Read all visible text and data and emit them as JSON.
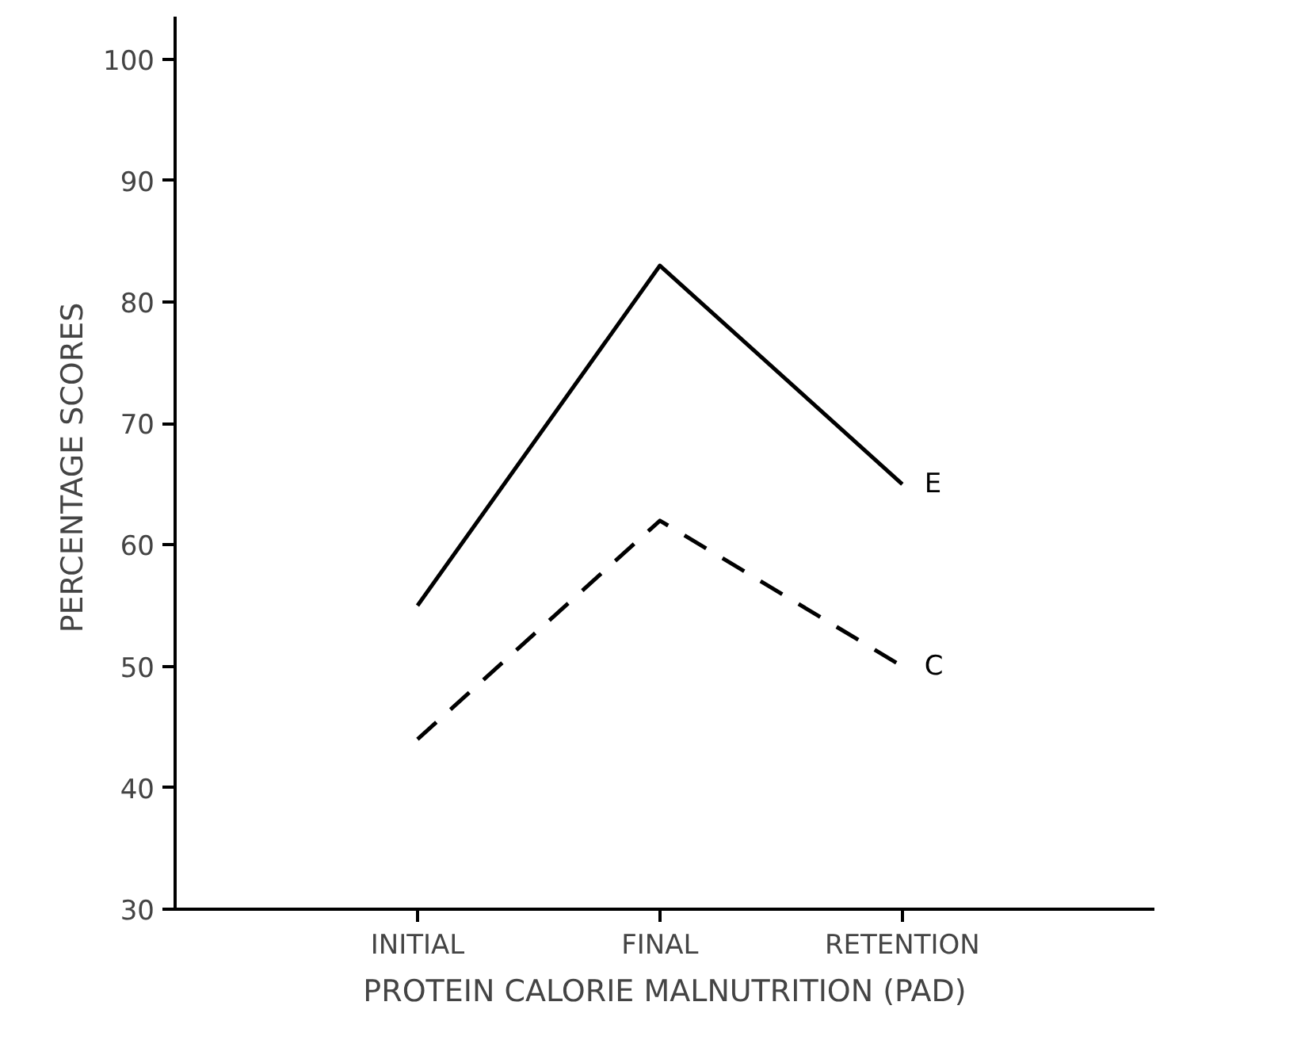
{
  "chart_data": {
    "type": "line",
    "xlabel": "PROTEIN CALORIE MALNUTRITION (PAD)",
    "ylabel": "PERCENTAGE  SCORES",
    "categories": [
      "INITIAL",
      "FINAL",
      "RETENTION"
    ],
    "series": [
      {
        "name": "E",
        "color": "#000000",
        "line_style": "solid",
        "values": [
          55,
          83,
          65
        ]
      },
      {
        "name": "C",
        "color": "#000000",
        "line_style": "dashed",
        "values": [
          44,
          62,
          50
        ]
      }
    ],
    "ylim": [
      30,
      103.5
    ],
    "yticks": [
      30,
      40,
      50,
      60,
      70,
      80,
      90,
      100
    ],
    "grid": false,
    "legend": false,
    "marker": "none"
  }
}
